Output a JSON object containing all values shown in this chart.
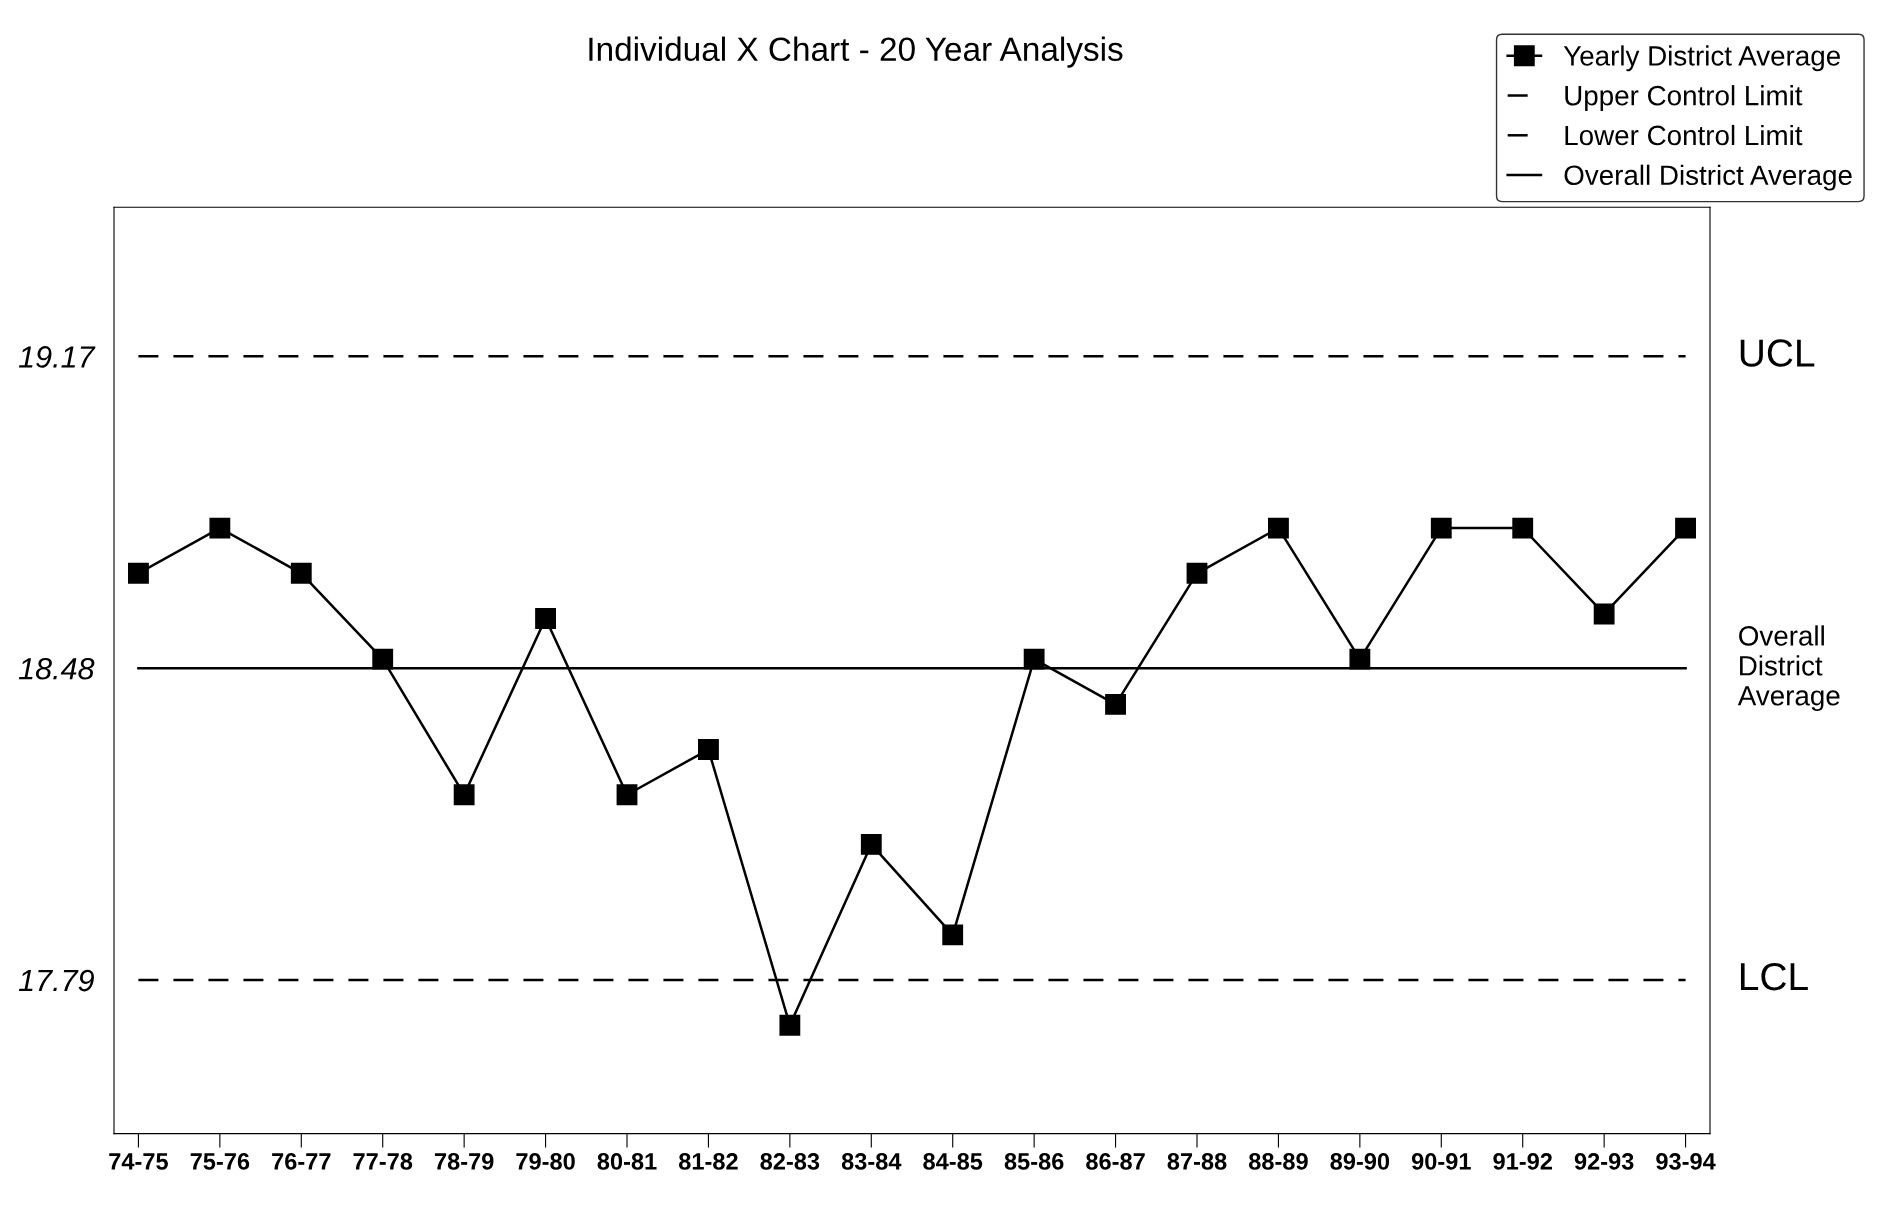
{
  "chart_data": {
    "type": "line",
    "title": "Individual X Chart - 20 Year Analysis",
    "categories": [
      "74-75",
      "75-76",
      "76-77",
      "77-78",
      "78-79",
      "79-80",
      "80-81",
      "81-82",
      "82-83",
      "83-84",
      "84-85",
      "85-86",
      "86-87",
      "87-88",
      "88-89",
      "89-90",
      "90-91",
      "91-92",
      "92-93",
      "93-94"
    ],
    "series": [
      {
        "name": "Yearly District Average",
        "color": "#000000",
        "marker": "square",
        "line_style": "solid",
        "values": [
          18.69,
          18.79,
          18.69,
          18.5,
          18.2,
          18.59,
          18.2,
          18.3,
          17.69,
          18.09,
          17.89,
          18.5,
          18.4,
          18.69,
          18.79,
          18.5,
          18.79,
          18.79,
          18.6,
          18.79
        ]
      },
      {
        "name": "Upper Control Limit",
        "color": "#000000",
        "marker": "none",
        "line_style": "dashed",
        "values": [
          19.17,
          19.17,
          19.17,
          19.17,
          19.17,
          19.17,
          19.17,
          19.17,
          19.17,
          19.17,
          19.17,
          19.17,
          19.17,
          19.17,
          19.17,
          19.17,
          19.17,
          19.17,
          19.17,
          19.17
        ]
      },
      {
        "name": "Lower Control Limit",
        "color": "#000000",
        "marker": "none",
        "line_style": "dashed",
        "values": [
          17.79,
          17.79,
          17.79,
          17.79,
          17.79,
          17.79,
          17.79,
          17.79,
          17.79,
          17.79,
          17.79,
          17.79,
          17.79,
          17.79,
          17.79,
          17.79,
          17.79,
          17.79,
          17.79,
          17.79
        ]
      },
      {
        "name": "Overall District Average",
        "color": "#000000",
        "marker": "none",
        "line_style": "solid",
        "values": [
          18.48,
          18.48,
          18.48,
          18.48,
          18.48,
          18.48,
          18.48,
          18.48,
          18.48,
          18.48,
          18.48,
          18.48,
          18.48,
          18.48,
          18.48,
          18.48,
          18.48,
          18.48,
          18.48,
          18.48
        ]
      }
    ],
    "ylim": [
      17.45,
      19.5
    ],
    "yticks": [
      19.17,
      18.48,
      17.79
    ],
    "grid": false,
    "legend": "top right",
    "annotations": [
      "UCL",
      "Overall\nDistrict\nAverage",
      "LCL"
    ]
  }
}
